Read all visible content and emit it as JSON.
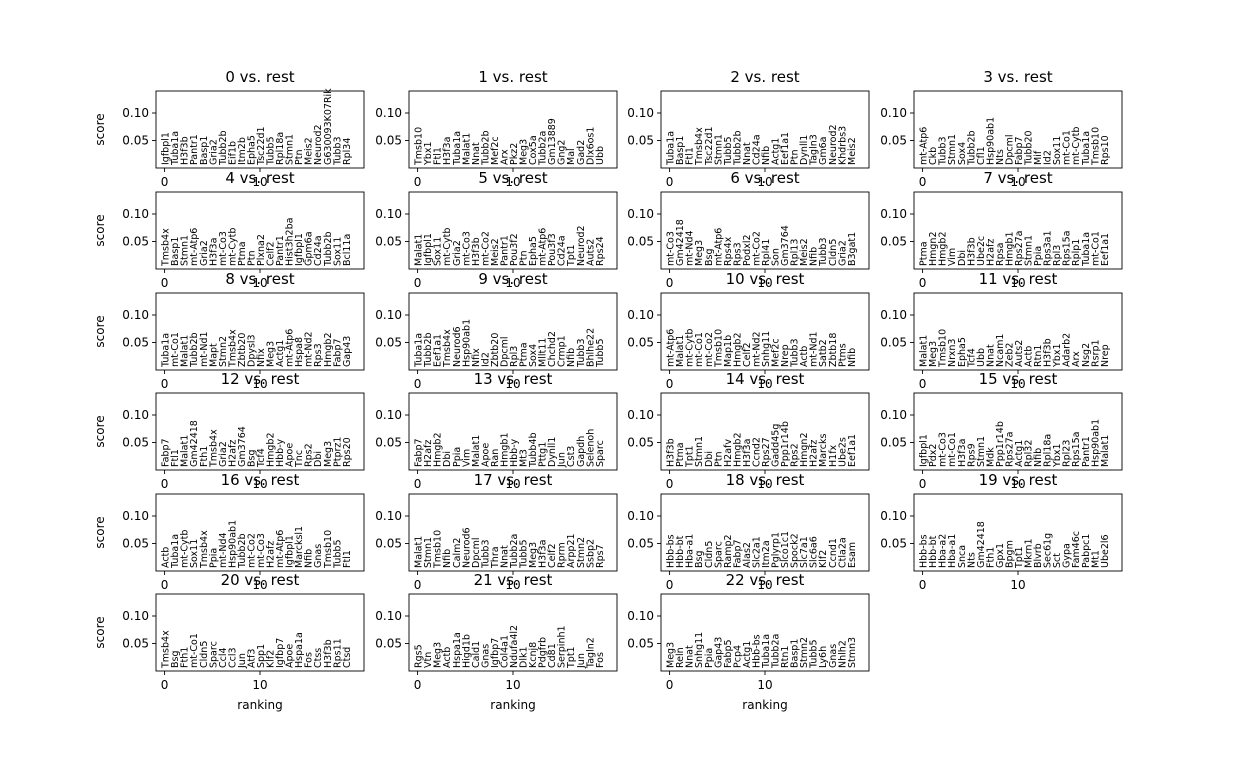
{
  "chart_data": {
    "type": "scatter",
    "description_type": "rank_genes_groups",
    "xlabel": "ranking",
    "ylabel": "score",
    "y_ticks": [
      0.05,
      0.1
    ],
    "x_ticks": [
      0,
      10
    ],
    "xlim": [
      -0.9,
      20.9
    ],
    "ylim": [
      0.0,
      0.14
    ],
    "n_genes": 20,
    "panels": [
      {
        "title": "0 vs. rest",
        "genes": [
          "Igfbpl1",
          "Tuba1a",
          "H3f3b",
          "Pantr1",
          "Basp1",
          "Gria2",
          "Tubb2b",
          "Eif1b",
          "Itm2b",
          "Epha5",
          "Tsc22d1",
          "Tubb5",
          "Rpl18a",
          "Stmn1",
          "Ptn",
          "Meis2",
          "Neurod2",
          "G630093K07Rik",
          "Tubb3",
          "Rpl34"
        ]
      },
      {
        "title": "1 vs. rest",
        "genes": [
          "Tmsb10",
          "Ybx1",
          "Ftl1",
          "H3f3a",
          "Tuba1a",
          "Malat1",
          "Nnat",
          "Tubb2b",
          "Mef2c",
          "Arx",
          "Pkz2",
          "Meg3",
          "Cox5a",
          "Tubb2a",
          "Gm13889",
          "Gng2",
          "Mal",
          "Gad2",
          "Dlx6os1",
          "Ubb"
        ]
      },
      {
        "title": "2 vs. rest",
        "genes": [
          "Tuba1a",
          "Basp1",
          "Ftl1",
          "Tmsb4x",
          "Tsc22d1",
          "Stmn1",
          "Tubb5",
          "Tubb2b",
          "Nnat",
          "Cd24a",
          "Nfib",
          "Actg1",
          "Eef1a1",
          "Ptn",
          "Dynll1",
          "Tagln3",
          "Gm6a",
          "Neurod2",
          "Khdrbs3",
          "Meis2"
        ]
      },
      {
        "title": "3 vs. rest",
        "genes": [
          "mt-Atp6",
          "Ckb",
          "Tubb3",
          "Stmn1",
          "Sox4",
          "Tubb2b",
          "Cfl1",
          "Hsp90ab1",
          "Nts",
          "Dpcml",
          "Fabp7",
          "Tubb20",
          "Mif",
          "Id2",
          "Sox11",
          "mt-Co1",
          "mt-Cytb",
          "Tuba1a",
          "Tmsb10",
          "Rps10"
        ]
      },
      {
        "title": "4 vs. rest",
        "genes": [
          "Tmsb4x",
          "Basp1",
          "Stmn1",
          "mt-Atp6",
          "Gria2",
          "H3f3a",
          "mt-Co3",
          "mt-Cytb",
          "Ptma",
          "Ptn",
          "Plxna2",
          "Celf2",
          "Pantr1",
          "Hist3h2ba",
          "Igfbpl1",
          "Gpm6a",
          "Cd24a",
          "Tubb2b",
          "Sox11",
          "Bcl11a"
        ]
      },
      {
        "title": "5 vs. rest",
        "genes": [
          "Malat1",
          "Igfbpl1",
          "Sox11",
          "mt-Cytb",
          "Gria2",
          "mt-Co3",
          "H3f3b",
          "mt-Co2",
          "Meis2",
          "Pantr1",
          "Pou3f2",
          "Ptn",
          "Epha5",
          "mt-Atp6",
          "Pou3f3",
          "Cd24a",
          "Tpt1",
          "Neurod2",
          "Auts2",
          "Rps24"
        ]
      },
      {
        "title": "6 vs. rest",
        "genes": [
          "mt-Co3",
          "Gm42418",
          "mt-Nd4",
          "Meg3",
          "Bsg",
          "mt-Atp6",
          "Rps4x",
          "Rps3",
          "Podxl2",
          "mt-Co2",
          "Rpl41",
          "Son",
          "Gm3764",
          "Rpl13",
          "Meis2",
          "Nfib",
          "Tubb3",
          "Cldn5",
          "Gria2",
          "B3gat1"
        ]
      },
      {
        "title": "7 vs. rest",
        "genes": [
          "Ptma",
          "Hmgn2",
          "Hmgb2",
          "Vim",
          "Dbi",
          "H3f3b",
          "Ube2c",
          "H2afz",
          "Rpsa",
          "Hmgb1",
          "Rps27a",
          "Stmn1",
          "Ppia",
          "Rps3a1",
          "Rpl3",
          "Rps15a",
          "Rplp1",
          "Tuba1a",
          "mt-Co1",
          "Eef1a1"
        ]
      },
      {
        "title": "8 vs. rest",
        "genes": [
          "Tuba1a",
          "mt-Co1",
          "Malat1",
          "Tubb2b",
          "mt-Nd1",
          "Mapt",
          "Stmn2",
          "Tmsb4x",
          "Zbtb20",
          "Dpysl3",
          "Nfix",
          "Meg3",
          "Actg1",
          "mt-Atp6",
          "Hspa8",
          "mt-Nd2",
          "Rps3",
          "Hmgb2",
          "Fabp7",
          "Gap43"
        ]
      },
      {
        "title": "9 vs. rest",
        "genes": [
          "Tuba1a",
          "Tubb2b",
          "Eef1a1",
          "Tmsb4x",
          "Neurod6",
          "Hsp90ab1",
          "Nfix",
          "Id2",
          "Zbtb20",
          "Dpcml",
          "Rpl3",
          "Ptma",
          "Sox4",
          "Mllt11",
          "Chchd2",
          "Crmp1",
          "Nfib",
          "Tubb3",
          "Bhlhe22",
          "Tubb5"
        ]
      },
      {
        "title": "10 vs. rest",
        "genes": [
          "mt-Atp6",
          "Malat1",
          "mt-Cytb",
          "mt-Co1",
          "mt-Co2",
          "Tmsb10",
          "Map1b",
          "Hmgb2",
          "Celf2",
          "mt-Nd2",
          "Snhg11",
          "Mef2c",
          "Nrep",
          "Tubb3",
          "Actb",
          "mt-Nd1",
          "Satb2",
          "Zbtb18",
          "Ptms",
          "Nfib"
        ]
      },
      {
        "title": "11 vs. rest",
        "genes": [
          "Malat1",
          "Meg3",
          "Tmsb10",
          "Nrxn3",
          "Epha5",
          "Tcf4",
          "Ubb",
          "Nnat",
          "Ncam1",
          "Zeb2",
          "Auts2",
          "Actb",
          "Rtn1",
          "H3f3b",
          "Ybx1",
          "Adarb2",
          "Arx",
          "Nsg2",
          "Rsrp1",
          "Nrep"
        ]
      },
      {
        "title": "12 vs. rest",
        "genes": [
          "Fabp7",
          "Ftl1",
          "Malat1",
          "Gm42418",
          "Fth1",
          "Tmsb4x",
          "Gria2",
          "H2afz",
          "Gm3764",
          "Bsg",
          "Tcf4",
          "Hmgb2",
          "Hbb-y",
          "Apoe",
          "Tnc",
          "Rps2",
          "Dbi",
          "Meg3",
          "Ptprz1",
          "Rps20"
        ]
      },
      {
        "title": "13 vs. rest",
        "genes": [
          "Fabp7",
          "H2afz",
          "Hmgb2",
          "Dbi",
          "Ppia",
          "Vim",
          "Malat1",
          "Apoe",
          "Ran",
          "Hmgb1",
          "Hbb-y",
          "Mt3",
          "Tubb4b",
          "Pttg1",
          "Dynll1",
          "Jun",
          "Cst3",
          "Gapdh",
          "Selenoh",
          "Sparc"
        ]
      },
      {
        "title": "14 vs. rest",
        "genes": [
          "H3f3b",
          "Ptma",
          "Tpt1",
          "Stmn1",
          "Dbi",
          "Ptn",
          "H2afv",
          "Hmgb2",
          "H3f3a",
          "Ccnd2",
          "Rps27",
          "Gadd45g",
          "Ppp1r14b",
          "Rps2",
          "Hmgn2",
          "H2afz",
          "Marcks",
          "H1fx",
          "Ube2s",
          "Eef1a1"
        ]
      },
      {
        "title": "15 vs. rest",
        "genes": [
          "Igfbpl1",
          "Pdx2",
          "mt-Co3",
          "mt-Co1",
          "H3f3a",
          "Rps9",
          "Stmn1",
          "Mdk",
          "Ppp1r14b",
          "Rps27a",
          "Actg1",
          "Rpl32",
          "Nfib",
          "Rpl18a",
          "Ybx1",
          "Rpl23",
          "Rps15a",
          "Pantr1",
          "Hsp90ab1",
          "Malat1"
        ]
      },
      {
        "title": "16 vs. rest",
        "genes": [
          "Actb",
          "Tuba1a",
          "mt-Cytb",
          "Sox11",
          "Tmsb4x",
          "Ppia",
          "mt-Nd4",
          "Hsp90ab1",
          "Tubb2b",
          "mt-Co2",
          "mt-Co3",
          "H2afz",
          "mt-Atp6",
          "Igfbpl1",
          "Marcksl1",
          "Nfib",
          "Gnas",
          "Tmsb10",
          "Tubb5",
          "Ftl1"
        ]
      },
      {
        "title": "17 vs. rest",
        "genes": [
          "Malat1",
          "Stmn1",
          "Tmsb10",
          "Nfib",
          "Calm2",
          "Neurod6",
          "Dpcml",
          "Tubb3",
          "Thra",
          "Nnat",
          "Tubb2a",
          "Tubb5",
          "Meg3",
          "H3f3a",
          "Celf2",
          "Rprm",
          "Arpp21",
          "Stmn2",
          "Ssbp2",
          "Rps7"
        ]
      },
      {
        "title": "18 vs. rest",
        "genes": [
          "Hbb-bs",
          "Hbb-bt",
          "Hba-a1",
          "Bsg",
          "Cldn5",
          "Sparc",
          "Ramp2",
          "Fabp7",
          "Alas2",
          "Slc2a1",
          "Itm2a",
          "Pglyrp1",
          "Slco1c1",
          "Spock2",
          "Slc7a1",
          "Slc6a6",
          "Klf2",
          "Ccnd1",
          "Ctla2a",
          "Esam"
        ]
      },
      {
        "title": "19 vs. rest",
        "genes": [
          "Hbb-bs",
          "Hbb-bt",
          "Hba-a2",
          "Hba-a1",
          "Snca",
          "Nts",
          "Gm42418",
          "Fth1",
          "Gpx1",
          "Bpgm",
          "Tpt1",
          "Mkrn1",
          "Blvrb",
          "Sec61g",
          "Sct",
          "Gypa",
          "Fam46c",
          "Pabpc1",
          "Mt1",
          "Ube2l6"
        ]
      },
      {
        "title": "20 vs. rest",
        "genes": [
          "Tmsb4x",
          "Bsg",
          "Fth1",
          "mt-Co1",
          "Cldn5",
          "Sparc",
          "Ccl4",
          "Ccl3",
          "Jun",
          "Atf3",
          "Spp1",
          "Klf2",
          "Igfbp7",
          "Apoe",
          "Hspa1a",
          "Fos",
          "Ctss",
          "H3f3b",
          "Rps11",
          "Ctsd"
        ]
      },
      {
        "title": "21 vs. rest",
        "genes": [
          "Rgs5",
          "Vtn",
          "Meg3",
          "Actb",
          "Hspa1a",
          "Higd1b",
          "Cald1",
          "Gnas",
          "Igfbp7",
          "Col4a1",
          "Ndufa4l2",
          "Dlk1",
          "Kcnj8",
          "Pdgfrb",
          "Cd81",
          "Serpinh1",
          "Tpt1",
          "Jun",
          "Tagln2",
          "Fos"
        ]
      },
      {
        "title": "22 vs. rest",
        "genes": [
          "Meg3",
          "Reln",
          "Nnat",
          "Snhg11",
          "Ppia",
          "Gap43",
          "Fabp5",
          "Pcp4",
          "Actg1",
          "Hbb-bs",
          "Tuba1a",
          "Tubb2a",
          "Rtn1",
          "Basp1",
          "Stmn2",
          "Tubb5",
          "Ly6h",
          "Gnas",
          "Nhlh2",
          "Stmn3"
        ]
      }
    ]
  }
}
